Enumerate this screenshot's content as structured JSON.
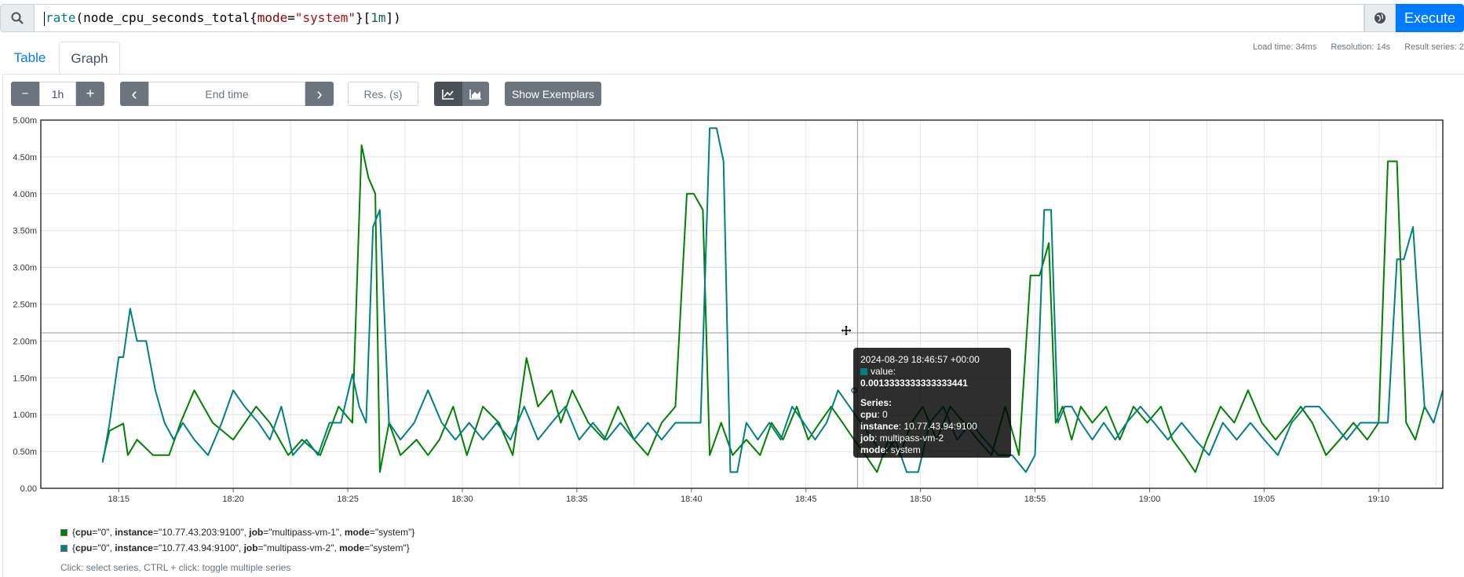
{
  "query": {
    "fn": "rate",
    "metric": "node_cpu_seconds_total",
    "label_key": "mode",
    "label_val": "\"system\"",
    "range": "1m",
    "execute_label": "Execute"
  },
  "tabs": [
    {
      "label": "Table"
    },
    {
      "label": "Graph"
    }
  ],
  "stats": {
    "load_time": "Load time: 34ms",
    "resolution": "Resolution: 14s",
    "result_series": "Result series: 2"
  },
  "controls": {
    "minus": "−",
    "range": "1h",
    "plus": "+",
    "prev": "‹",
    "end_time_placeholder": "End time",
    "next": "›",
    "res_placeholder": "Res. (s)",
    "show_exemplars": "Show Exemplars"
  },
  "chart_data": {
    "type": "line",
    "y_ticks": [
      "0.00",
      "0.50m",
      "1.00m",
      "1.50m",
      "2.00m",
      "2.50m",
      "3.00m",
      "3.50m",
      "4.00m",
      "4.50m",
      "5.00m"
    ],
    "ylim": [
      0,
      0.005
    ],
    "x_ticks": [
      "18:15",
      "18:20",
      "18:25",
      "18:30",
      "18:35",
      "18:40",
      "18:45",
      "18:50",
      "18:55",
      "19:00",
      "19:05",
      "19:10"
    ],
    "x_tick_minutes": [
      15,
      20,
      25,
      30,
      35,
      40,
      45,
      50,
      55,
      60,
      65,
      70
    ],
    "xlim_minutes": [
      11.6,
      72.8
    ],
    "grid": true,
    "series": [
      {
        "color": "#008000",
        "minutes": [
          14.3,
          14.6,
          15.2,
          15.4,
          15.8,
          16.5,
          17.2,
          17.7,
          18.3,
          19.1,
          20.0,
          21.0,
          21.6,
          22.4,
          23.0,
          23.8,
          24.6,
          25.2,
          25.6,
          25.9,
          26.2,
          26.4,
          26.8,
          27.3,
          28.0,
          28.5,
          29.0,
          29.6,
          30.2,
          30.9,
          31.6,
          32.2,
          32.8,
          33.3,
          33.9,
          34.3,
          34.8,
          35.5,
          36.2,
          36.8,
          37.5,
          38.1,
          38.7,
          39.3,
          39.8,
          40.1,
          40.5,
          40.8,
          41.3,
          41.8,
          42.4,
          43.0,
          43.5,
          44.0,
          44.6,
          45.1,
          45.6,
          46.1,
          46.6,
          47.1,
          47.6,
          48.1,
          48.6,
          49.1,
          49.6,
          50.1,
          50.7,
          51.3,
          51.9,
          52.5,
          53.1,
          53.7,
          54.3,
          54.8,
          55.2,
          55.6,
          55.9,
          56.2,
          56.6,
          57.0,
          57.5,
          58.1,
          58.7,
          59.3,
          59.9,
          60.5,
          61.0,
          61.5,
          62.0,
          62.5,
          63.1,
          63.7,
          64.3,
          64.9,
          65.5,
          66.1,
          66.6,
          67.1,
          67.7,
          68.3,
          68.9,
          69.5,
          70.0,
          70.4,
          70.8,
          71.2,
          71.6,
          72.0,
          72.4,
          72.8
        ],
        "values": [
          0.00038,
          0.00078,
          0.00088,
          0.00045,
          0.00066,
          0.00045,
          0.00045,
          0.00089,
          0.00133,
          0.00089,
          0.00066,
          0.00111,
          0.00089,
          0.00045,
          0.00066,
          0.00045,
          0.00111,
          0.00089,
          0.00466,
          0.00422,
          0.004,
          0.00022,
          0.00089,
          0.00045,
          0.00066,
          0.00045,
          0.00066,
          0.00111,
          0.00045,
          0.00111,
          0.00089,
          0.00045,
          0.00177,
          0.00111,
          0.00133,
          0.00089,
          0.00133,
          0.00089,
          0.00066,
          0.00111,
          0.00066,
          0.00045,
          0.00089,
          0.00111,
          0.004,
          0.004,
          0.00378,
          0.00045,
          0.00089,
          0.00045,
          0.00066,
          0.00045,
          0.00089,
          0.00066,
          0.00111,
          0.00066,
          0.00089,
          0.00111,
          0.00089,
          0.00066,
          0.00045,
          0.00022,
          0.00066,
          0.00045,
          0.00089,
          0.00111,
          0.00066,
          0.00111,
          0.00089,
          0.00066,
          0.00045,
          0.00111,
          0.00045,
          0.00289,
          0.00289,
          0.00333,
          0.00089,
          0.00111,
          0.00066,
          0.00111,
          0.00089,
          0.00111,
          0.00066,
          0.00111,
          0.00089,
          0.00111,
          0.00066,
          0.00045,
          0.00022,
          0.00066,
          0.00111,
          0.00089,
          0.00133,
          0.00089,
          0.00066,
          0.00089,
          0.00111,
          0.00089,
          0.00045,
          0.00066,
          0.00089,
          0.00066,
          0.00089,
          0.00444,
          0.00444,
          0.00089,
          0.00066,
          0.00111,
          0.00089
        ]
      },
      {
        "color": "#008080",
        "minutes": [
          14.3,
          14.6,
          15.0,
          15.2,
          15.5,
          15.8,
          16.2,
          16.6,
          17.0,
          17.4,
          17.8,
          18.3,
          18.9,
          19.5,
          20.0,
          20.5,
          21.1,
          21.6,
          22.1,
          22.6,
          23.2,
          23.7,
          24.2,
          24.7,
          25.2,
          25.5,
          25.8,
          26.1,
          26.4,
          26.8,
          27.3,
          27.9,
          28.5,
          29.1,
          29.7,
          30.3,
          30.9,
          31.5,
          32.1,
          32.7,
          33.3,
          33.9,
          34.5,
          35.1,
          35.7,
          36.3,
          36.9,
          37.5,
          38.1,
          38.7,
          39.3,
          39.9,
          40.4,
          40.8,
          41.1,
          41.4,
          41.7,
          42.0,
          42.4,
          42.9,
          43.4,
          43.9,
          44.4,
          44.9,
          45.4,
          45.9,
          46.4,
          46.9,
          47.4,
          47.9,
          48.4,
          48.9,
          49.4,
          49.9,
          50.4,
          51.0,
          51.6,
          52.2,
          52.8,
          53.4,
          54.0,
          54.6,
          55.0,
          55.4,
          55.7,
          56.0,
          56.3,
          56.6,
          57.0,
          57.5,
          58.0,
          58.5,
          59.0,
          59.6,
          60.2,
          60.8,
          61.4,
          62.0,
          62.6,
          63.2,
          63.8,
          64.4,
          65.0,
          65.6,
          66.2,
          66.8,
          67.4,
          68.0,
          68.6,
          69.2,
          69.8,
          70.4,
          70.8,
          71.1,
          71.5,
          72.0,
          72.4,
          72.8
        ],
        "values": [
          0.00035,
          0.00088,
          0.00178,
          0.00178,
          0.00244,
          0.002,
          0.002,
          0.00133,
          0.00089,
          0.00066,
          0.00089,
          0.00066,
          0.00045,
          0.00089,
          0.00133,
          0.00111,
          0.00089,
          0.00066,
          0.00111,
          0.00045,
          0.00066,
          0.00045,
          0.00089,
          0.00089,
          0.00155,
          0.00111,
          0.00089,
          0.00355,
          0.00378,
          0.00089,
          0.00066,
          0.00089,
          0.00133,
          0.00089,
          0.00066,
          0.00089,
          0.00066,
          0.00089,
          0.00066,
          0.00111,
          0.00066,
          0.00089,
          0.00111,
          0.00066,
          0.00089,
          0.00066,
          0.00089,
          0.00066,
          0.00089,
          0.00066,
          0.00089,
          0.00089,
          0.00089,
          0.00489,
          0.00489,
          0.00444,
          0.00022,
          0.00022,
          0.00089,
          0.00066,
          0.00089,
          0.00066,
          0.00111,
          0.00089,
          0.00066,
          0.00089,
          0.00133,
          0.00111,
          0.00089,
          0.00066,
          0.00045,
          0.00066,
          0.00022,
          0.00022,
          0.00089,
          0.00111,
          0.00066,
          0.00089,
          0.00066,
          0.00045,
          0.00045,
          0.00022,
          0.00045,
          0.00378,
          0.00378,
          0.00089,
          0.00111,
          0.00111,
          0.00089,
          0.00066,
          0.00089,
          0.00066,
          0.00089,
          0.00111,
          0.00089,
          0.00066,
          0.00089,
          0.00066,
          0.00045,
          0.00089,
          0.00066,
          0.00089,
          0.00066,
          0.00045,
          0.00089,
          0.00111,
          0.00111,
          0.00089,
          0.00066,
          0.00089,
          0.00089,
          0.00089,
          0.00311,
          0.00311,
          0.00355,
          0.00111,
          0.00089,
          0.00133
        ]
      }
    ]
  },
  "legend": [
    {
      "color": "#008000",
      "k1": "cpu",
      "v1": "\"0\"",
      "k2": "instance",
      "v2": "\"10.77.43.203:9100\"",
      "k3": "job",
      "v3": "\"multipass-vm-1\"",
      "k4": "mode",
      "v4": "\"system\""
    },
    {
      "color": "#008080",
      "k1": "cpu",
      "v1": "\"0\"",
      "k2": "instance",
      "v2": "\"10.77.43.94:9100\"",
      "k3": "job",
      "v3": "\"multipass-vm-2\"",
      "k4": "mode",
      "v4": "\"system\""
    }
  ],
  "hint": "Click: select series, CTRL + click: toggle multiple series",
  "tooltip": {
    "time": "2024-08-29 18:46:57 +00:00",
    "value_label": "value:",
    "value": "0.0013333333333333441",
    "series_label": "Series:",
    "cpu_k": "cpu",
    "cpu_v": "0",
    "instance_k": "instance",
    "instance_v": "10.77.43.94:9100",
    "job_k": "job",
    "job_v": "multipass-vm-2",
    "mode_k": "mode",
    "mode_v": "system",
    "color": "#008080"
  }
}
